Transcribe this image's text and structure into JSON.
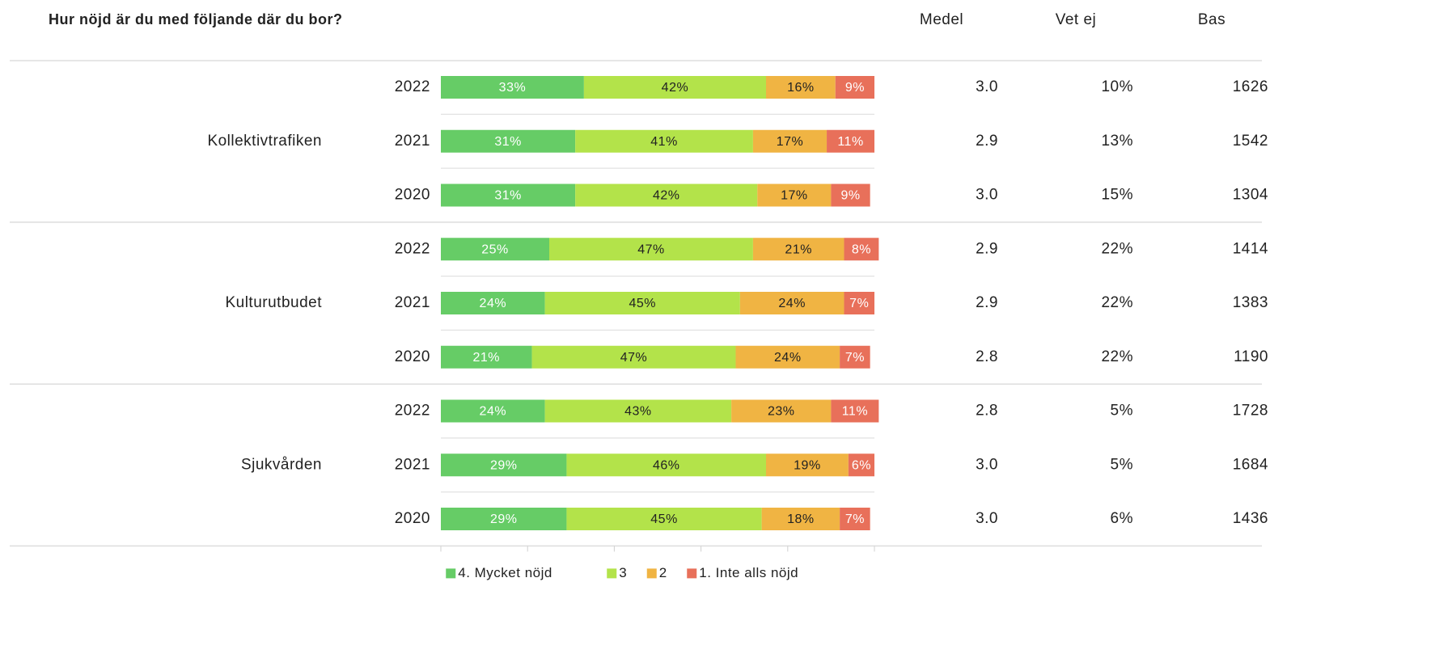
{
  "chart_data": {
    "type": "bar",
    "orientation": "horizontal",
    "stacked": true,
    "title": "Hur nöjd är du med följande där du bor?",
    "groups": [
      {
        "name": "Kollektivtrafiken",
        "categories": [
          "2022",
          "2021",
          "2020"
        ]
      },
      {
        "name": "Kulturutbudet",
        "categories": [
          "2022",
          "2021",
          "2020"
        ]
      },
      {
        "name": "Sjukvården",
        "categories": [
          "2022",
          "2021",
          "2020"
        ]
      }
    ],
    "series": [
      {
        "name": "4. Mycket nöjd",
        "color": "#66cc66",
        "label_color": "#ffffff",
        "values": [
          33,
          31,
          31,
          25,
          24,
          21,
          24,
          29,
          29
        ],
        "value_labels": [
          "33%",
          "31%",
          "31%",
          "25%",
          "24%",
          "21%",
          "24%",
          "29%",
          "29%"
        ]
      },
      {
        "name": "3",
        "color": "#b3e34a",
        "label_color": "#222222",
        "values": [
          42,
          41,
          42,
          47,
          45,
          47,
          43,
          46,
          45
        ],
        "value_labels": [
          "42%",
          "41%",
          "42%",
          "47%",
          "45%",
          "47%",
          "43%",
          "46%",
          "45%"
        ]
      },
      {
        "name": "2",
        "color": "#f0b443",
        "label_color": "#222222",
        "values": [
          16,
          17,
          17,
          21,
          24,
          24,
          23,
          19,
          18
        ],
        "value_labels": [
          "16%",
          "17%",
          "17%",
          "21%",
          "24%",
          "24%",
          "23%",
          "19%",
          "18%"
        ]
      },
      {
        "name": "1. Inte alls nöjd",
        "color": "#e8705a",
        "label_color": "#ffffff",
        "values": [
          9,
          11,
          9,
          8,
          7,
          7,
          11,
          6,
          7
        ],
        "value_labels": [
          "9%",
          "11%",
          "9%",
          "8%",
          "7%",
          "7%",
          "11%",
          "6%",
          "7%"
        ]
      }
    ],
    "columns": [
      {
        "name": "Medel",
        "values": [
          3.0,
          2.9,
          3.0,
          2.9,
          2.9,
          2.8,
          2.8,
          3.0,
          3.0
        ],
        "value_labels": [
          "3.0",
          "2.9",
          "3.0",
          "2.9",
          "2.9",
          "2.8",
          "2.8",
          "3.0",
          "3.0"
        ]
      },
      {
        "name": "Vet ej",
        "values": [
          10,
          13,
          15,
          22,
          22,
          22,
          5,
          5,
          6
        ],
        "value_labels": [
          "10%",
          "13%",
          "15%",
          "22%",
          "22%",
          "22%",
          "5%",
          "5%",
          "6%"
        ]
      },
      {
        "name": "Bas",
        "values": [
          1626,
          1542,
          1304,
          1414,
          1383,
          1190,
          1728,
          1684,
          1436
        ]
      }
    ],
    "xlim": [
      0,
      100
    ],
    "xticks": [
      0,
      20,
      40,
      60,
      80,
      100
    ],
    "legend": "bottom"
  }
}
